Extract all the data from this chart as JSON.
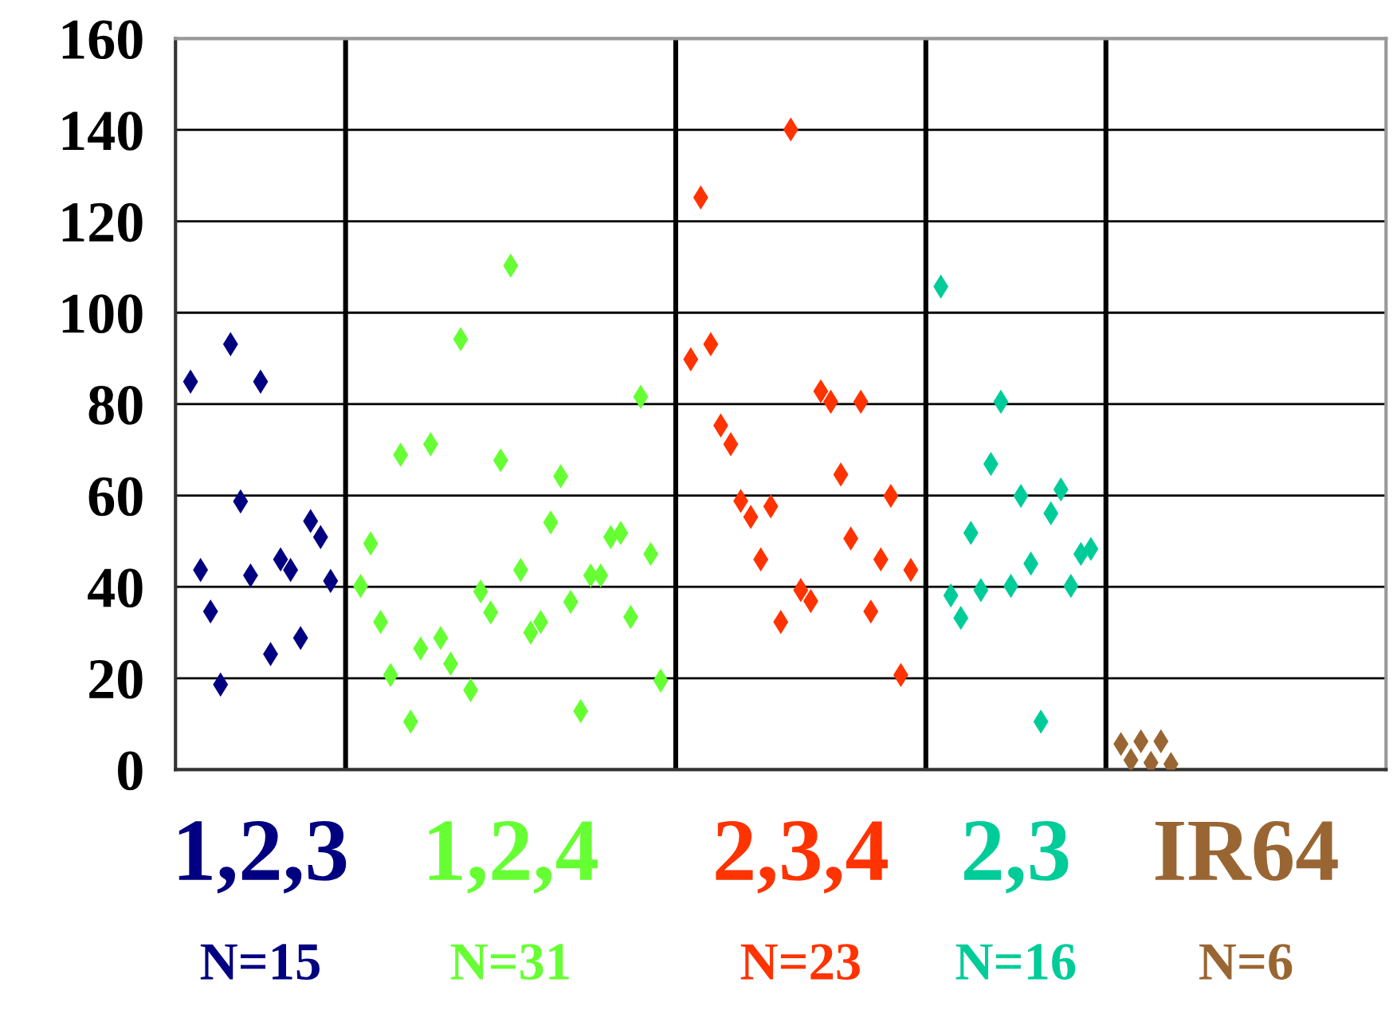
{
  "chart_data": {
    "type": "scatter",
    "marker": "diamond",
    "grid": "y",
    "tick_labels": "y",
    "categories": [
      null,
      null,
      null,
      null,
      null,
      null,
      null,
      null,
      null,
      null,
      null,
      null,
      null,
      null,
      null,
      null,
      null,
      null,
      null,
      null,
      null,
      null,
      null,
      null,
      null,
      null,
      null,
      null,
      null,
      null,
      null,
      null,
      null,
      null,
      null,
      null,
      null,
      null,
      null,
      null,
      null,
      null,
      null,
      null,
      null,
      null,
      null,
      null,
      null,
      null,
      null,
      null,
      null,
      null,
      null,
      null,
      null,
      null,
      null,
      null,
      null,
      null,
      null,
      null,
      null,
      null,
      null,
      null,
      null,
      null,
      null,
      null,
      null,
      null,
      null,
      null,
      null,
      null,
      null,
      null,
      null,
      null,
      null,
      null,
      null,
      null,
      null,
      null,
      null,
      null,
      null,
      null,
      null,
      null,
      null,
      null,
      null,
      null,
      null,
      null,
      null,
      null,
      null,
      null,
      null,
      null,
      null,
      null,
      null,
      null,
      null,
      null,
      null,
      null,
      null,
      null,
      null,
      null,
      null,
      null,
      null
    ],
    "ylim": [
      0,
      160
    ],
    "yticks": [
      0,
      20,
      40,
      60,
      80,
      100,
      120,
      140,
      160
    ],
    "series": [
      {
        "name": "1,2,3",
        "color": "#000080",
        "values": [
          null,
          84.9,
          43.7,
          34.6,
          18.6,
          93.1,
          58.7,
          42.5,
          84.9,
          25.3,
          46.0,
          43.7,
          28.8,
          54.4,
          50.9,
          41.3,
          null,
          null,
          null,
          null,
          null,
          null,
          null,
          null,
          null,
          null,
          null,
          null,
          null,
          null,
          null,
          null,
          null,
          null,
          null,
          null,
          null,
          null,
          null,
          null,
          null,
          null,
          null,
          null,
          null,
          null,
          null,
          null,
          null,
          null,
          null,
          null,
          null,
          null,
          null,
          null,
          null,
          null,
          null,
          null,
          null,
          null,
          null,
          null,
          null,
          null,
          null,
          null,
          null,
          null,
          null,
          null,
          null,
          null,
          null,
          null,
          null,
          null,
          null,
          null,
          null,
          null,
          null,
          null,
          null,
          null,
          null,
          null,
          null,
          null,
          null,
          null,
          null,
          null,
          null,
          null,
          null,
          null,
          null,
          null,
          null,
          null,
          null,
          null,
          null,
          null,
          null,
          null,
          null,
          null,
          null,
          null,
          null,
          null,
          null,
          null,
          null,
          null,
          null,
          null,
          null
        ]
      },
      {
        "name": "1,2,4",
        "color": "#66ff33",
        "values": [
          null,
          null,
          null,
          null,
          null,
          null,
          null,
          null,
          null,
          null,
          null,
          null,
          null,
          null,
          null,
          null,
          null,
          null,
          40.2,
          49.5,
          32.3,
          20.7,
          68.9,
          10.5,
          26.5,
          71.2,
          28.8,
          23.2,
          94.2,
          17.4,
          39.0,
          34.4,
          67.7,
          110.3,
          43.7,
          30.0,
          32.3,
          54.1,
          64.2,
          36.7,
          12.8,
          42.5,
          42.5,
          50.9,
          51.8,
          33.4,
          81.6,
          47.2,
          19.5,
          null,
          null,
          null,
          null,
          null,
          null,
          null,
          null,
          null,
          null,
          null,
          null,
          null,
          null,
          null,
          null,
          null,
          null,
          null,
          null,
          null,
          null,
          null,
          null,
          null,
          null,
          null,
          null,
          null,
          null,
          null,
          null,
          null,
          null,
          null,
          null,
          null,
          null,
          null,
          null,
          null,
          null,
          null,
          null,
          null,
          null,
          null,
          null,
          null,
          null,
          null,
          null,
          null,
          null,
          null,
          null,
          null,
          null,
          null,
          null,
          null,
          null,
          null,
          null,
          null,
          null,
          null,
          null,
          null,
          null,
          null,
          null
        ]
      },
      {
        "name": "2,3,4",
        "color": "#ff3300",
        "values": [
          null,
          null,
          null,
          null,
          null,
          null,
          null,
          null,
          null,
          null,
          null,
          null,
          null,
          null,
          null,
          null,
          null,
          null,
          null,
          null,
          null,
          null,
          null,
          null,
          null,
          null,
          null,
          null,
          null,
          null,
          null,
          null,
          null,
          null,
          null,
          null,
          null,
          null,
          null,
          null,
          null,
          null,
          null,
          null,
          null,
          null,
          null,
          null,
          null,
          null,
          null,
          89.8,
          125.2,
          93.1,
          75.3,
          71.2,
          58.8,
          55.3,
          46.0,
          57.6,
          32.3,
          140.1,
          39.3,
          36.9,
          82.8,
          80.5,
          64.6,
          50.6,
          80.5,
          34.6,
          46.0,
          59.9,
          20.7,
          43.7,
          null,
          null,
          null,
          null,
          null,
          null,
          null,
          null,
          null,
          null,
          null,
          null,
          null,
          null,
          null,
          null,
          null,
          null,
          null,
          null,
          null,
          null,
          null,
          null,
          null,
          null,
          null,
          null,
          null,
          null,
          null,
          null,
          null,
          null,
          null,
          null,
          null,
          null,
          null,
          null,
          null,
          null,
          null,
          null,
          null,
          null,
          null
        ]
      },
      {
        "name": "2,3",
        "color": "#00cc99",
        "values": [
          null,
          null,
          null,
          null,
          null,
          null,
          null,
          null,
          null,
          null,
          null,
          null,
          null,
          null,
          null,
          null,
          null,
          null,
          null,
          null,
          null,
          null,
          null,
          null,
          null,
          null,
          null,
          null,
          null,
          null,
          null,
          null,
          null,
          null,
          null,
          null,
          null,
          null,
          null,
          null,
          null,
          null,
          null,
          null,
          null,
          null,
          null,
          null,
          null,
          null,
          null,
          null,
          null,
          null,
          null,
          null,
          null,
          null,
          null,
          null,
          null,
          null,
          null,
          null,
          null,
          null,
          null,
          null,
          null,
          null,
          null,
          null,
          null,
          null,
          null,
          null,
          105.7,
          38.1,
          33.2,
          51.8,
          39.3,
          66.9,
          80.5,
          40.2,
          59.9,
          45.1,
          10.5,
          56.1,
          61.3,
          40.2,
          47.2,
          48.3,
          null,
          null,
          null,
          null,
          null,
          null,
          null,
          null,
          null,
          null,
          null,
          null,
          null,
          null,
          null,
          null,
          null,
          null,
          null,
          null,
          null,
          null,
          null,
          null,
          null,
          null,
          null,
          null,
          null
        ]
      },
      {
        "name": "IR64",
        "color": "#996633",
        "values": [
          null,
          null,
          null,
          null,
          null,
          null,
          null,
          null,
          null,
          null,
          null,
          null,
          null,
          null,
          null,
          null,
          null,
          null,
          null,
          null,
          null,
          null,
          null,
          null,
          null,
          null,
          null,
          null,
          null,
          null,
          null,
          null,
          null,
          null,
          null,
          null,
          null,
          null,
          null,
          null,
          null,
          null,
          null,
          null,
          null,
          null,
          null,
          null,
          null,
          null,
          null,
          null,
          null,
          null,
          null,
          null,
          null,
          null,
          null,
          null,
          null,
          null,
          null,
          null,
          null,
          null,
          null,
          null,
          null,
          null,
          null,
          null,
          null,
          null,
          null,
          null,
          null,
          null,
          null,
          null,
          null,
          null,
          null,
          null,
          null,
          null,
          null,
          null,
          null,
          null,
          null,
          null,
          null,
          null,
          5.6,
          2.1,
          6.2,
          1.5,
          6.2,
          1.2,
          null,
          null,
          null,
          null,
          null,
          null,
          null,
          null,
          null,
          null,
          null,
          null,
          null,
          null,
          null,
          null,
          null,
          null,
          null,
          null,
          null
        ]
      }
    ],
    "annotations": [
      "N=15",
      "N=31",
      "N=23",
      "N=16",
      "N=6"
    ]
  }
}
